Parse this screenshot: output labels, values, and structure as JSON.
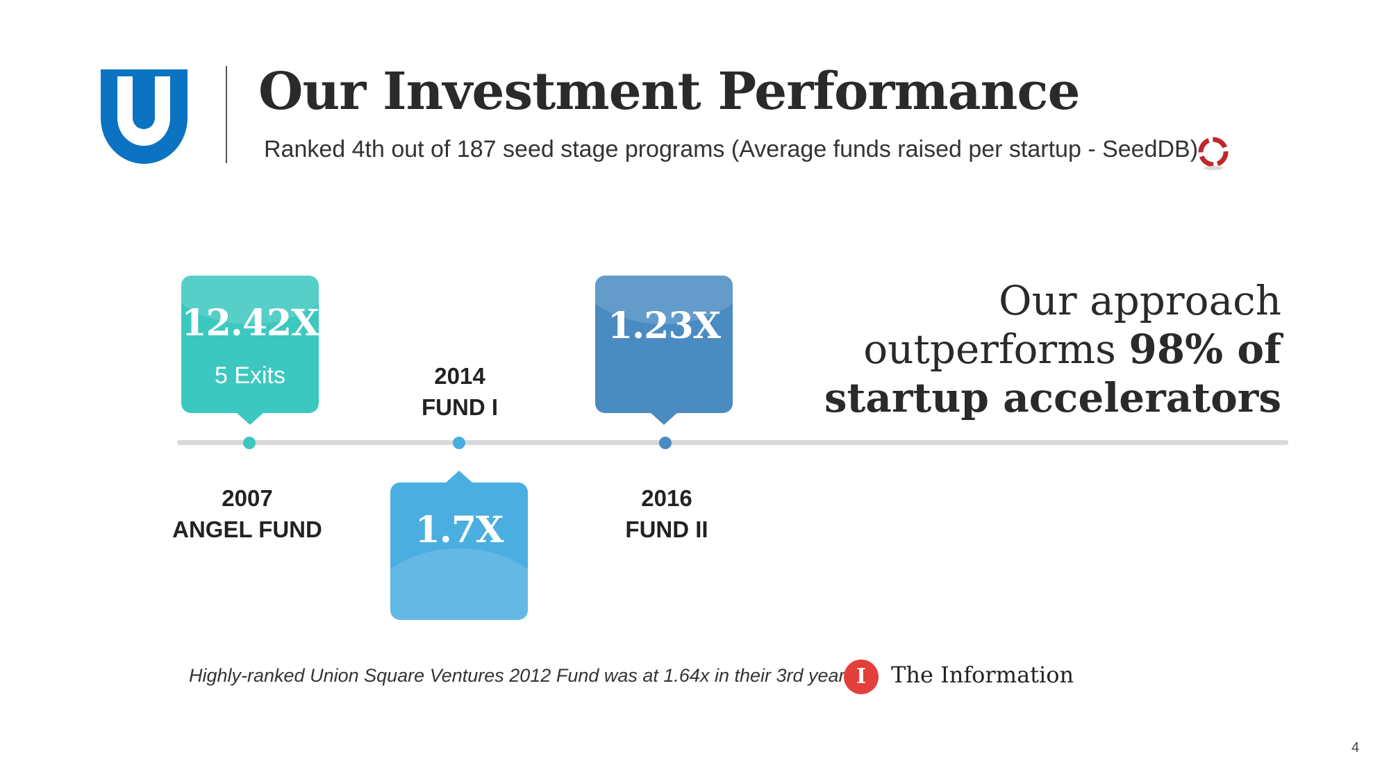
{
  "header": {
    "title": "Our Investment Performance",
    "subtitle": "Ranked 4th out of 187 seed stage programs (Average funds raised per startup - SeedDB)",
    "logo_icon": "u-shield-logo-icon",
    "source_icon": "seeddb-icon"
  },
  "timeline": [
    {
      "year": "2007",
      "fund": "ANGEL FUND",
      "multiple": "12.42X",
      "note": "5 Exits",
      "color": "#3cc8c0"
    },
    {
      "year": "2014",
      "fund": "FUND I",
      "multiple": "1.7X",
      "note": "",
      "color": "#4aaee0"
    },
    {
      "year": "2016",
      "fund": "FUND II",
      "multiple": "1.23X",
      "note": "",
      "color": "#4a8bc2"
    }
  ],
  "approach": {
    "line1": "Our approach",
    "line2_plain": "outperforms ",
    "line2_bold": "98% of",
    "line3_bold": "startup accelerators"
  },
  "footnote": {
    "text": "Highly-ranked Union Square Ventures 2012 Fund was at 1.64x in their 3rd year.",
    "source_letter": "I",
    "source_name": "The Information"
  },
  "page_number": "4",
  "colors": {
    "brand_blue": "#0b73c2",
    "timeline": "#d9d9d9",
    "teal": "#3cc8c0",
    "sky": "#4aaee0",
    "steel": "#4a8bc2",
    "information_red": "#e2413b"
  }
}
